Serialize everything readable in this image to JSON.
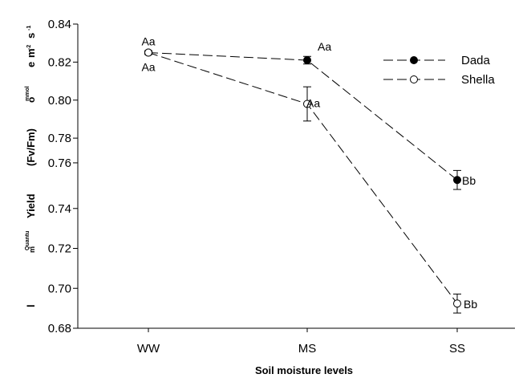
{
  "chart_data": {
    "type": "line",
    "categories": [
      "WW",
      "MS",
      "SS"
    ],
    "xlabel": "Soil moisture levels",
    "ylabel_fragments": [
      "m",
      "-2",
      "s",
      "-1",
      "e",
      "mmol",
      "o",
      "(Fv/Fm)",
      "Yield",
      "Quantu",
      "m",
      "l"
    ],
    "yticks": [
      "0.84",
      "0.82",
      "0.80",
      "0.78",
      "0.76",
      "0.74",
      "0.72",
      "0.70",
      "0.68"
    ],
    "tick_values": [
      0.84,
      0.82,
      0.8,
      0.78,
      0.76,
      0.74,
      0.72,
      0.7,
      0.68
    ],
    "tick_positions": [
      0.84,
      0.82,
      0.8,
      0.78,
      0.767,
      0.743,
      0.722,
      0.701,
      0.68
    ],
    "ylim": [
      0.68,
      0.84
    ],
    "series": [
      {
        "name": "Dada",
        "marker": "filled-circle",
        "values": [
          0.825,
          0.821,
          0.758
        ],
        "errors": [
          0.001,
          0.002,
          0.005
        ],
        "labels": [
          "Aa",
          "Aa",
          "Bb"
        ]
      },
      {
        "name": "Shella",
        "marker": "open-circle",
        "values": [
          0.825,
          0.798,
          0.693
        ],
        "errors": [
          0.0005,
          0.009,
          0.005
        ],
        "labels": [
          "Aa",
          "Aa",
          "Bb"
        ]
      }
    ],
    "legend_position": "top-right",
    "grid": false,
    "line_style": "dashed"
  }
}
